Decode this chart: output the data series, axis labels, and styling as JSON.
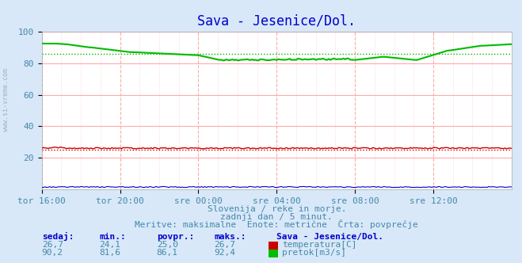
{
  "title": "Sava - Jesenice/Dol.",
  "title_color": "#0000cc",
  "bg_color": "#d8e8f8",
  "plot_bg_color": "#ffffff",
  "grid_color_major": "#ffaaaa",
  "grid_color_minor": "#ffdddd",
  "xlabel_color": "#4488aa",
  "text_color": "#4488aa",
  "xlabels": [
    "tor 16:00",
    "tor 20:00",
    "sre 00:00",
    "sre 04:00",
    "sre 08:00",
    "sre 12:00"
  ],
  "xticks": [
    0,
    48,
    96,
    144,
    192,
    240
  ],
  "xmax": 288,
  "ylim": [
    0,
    100
  ],
  "yticks": [
    20,
    40,
    60,
    80,
    100
  ],
  "temp_color": "#cc0000",
  "flow_color": "#00bb00",
  "height_color": "#0000cc",
  "temp_avg": 25.0,
  "flow_avg": 86.1,
  "subtitle1": "Slovenija / reke in morje.",
  "subtitle2": "zadnji dan / 5 minut.",
  "subtitle3": "Meritve: maksimalne  Enote: metrične  Črta: povprečje",
  "legend_title": "Sava - Jesenice/Dol.",
  "legend_items": [
    {
      "label": "temperatura[C]",
      "color": "#cc0000"
    },
    {
      "label": "pretok[m3/s]",
      "color": "#00bb00"
    }
  ],
  "stats_headers": [
    "sedaj:",
    "min.:",
    "povpr.:",
    "maks.:"
  ],
  "stats_temp": [
    "26,7",
    "24,1",
    "25,0",
    "26,7"
  ],
  "stats_flow": [
    "90,2",
    "81,6",
    "86,1",
    "92,4"
  ],
  "left_label": "www.si-vreme.com"
}
